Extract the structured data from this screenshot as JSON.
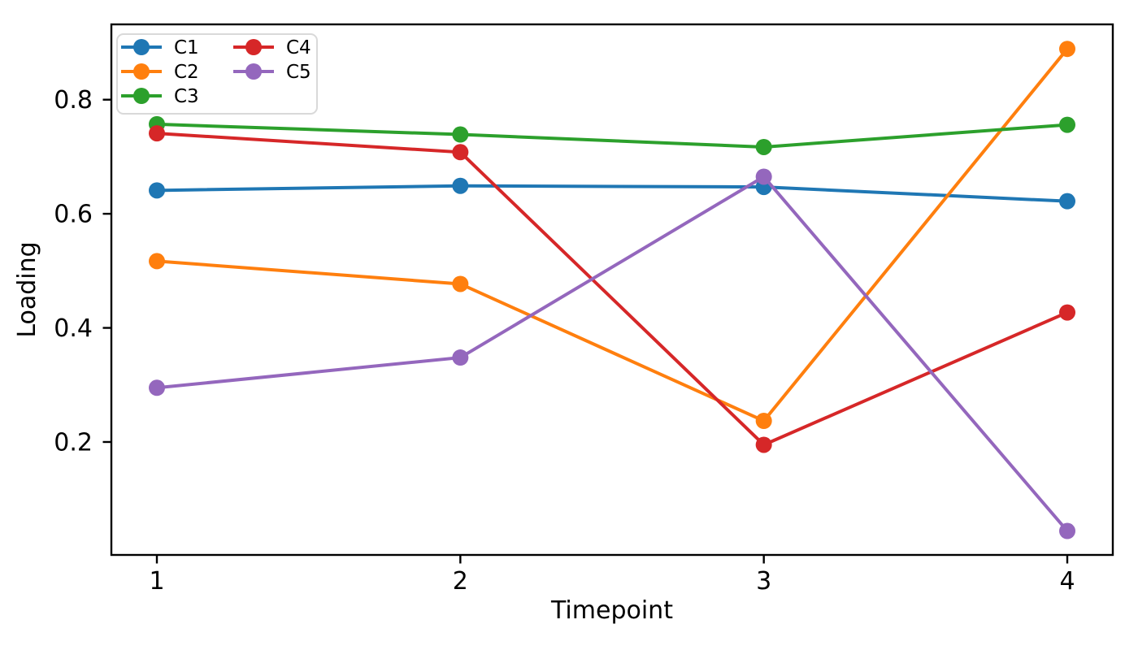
{
  "figure": {
    "background": "#ffffff",
    "text_color": "#000000",
    "axis_color": "#000000",
    "legend_border_color": "#d9d9d9",
    "legend_background": "#ffffff"
  },
  "chart_data": {
    "type": "line",
    "title": "",
    "xlabel": "Timepoint",
    "ylabel": "Loading",
    "x": [
      1,
      2,
      3,
      4
    ],
    "series": [
      {
        "name": "C1",
        "color": "#1f77b4",
        "values": [
          0.641,
          0.649,
          0.647,
          0.622
        ]
      },
      {
        "name": "C2",
        "color": "#ff7f0e",
        "values": [
          0.517,
          0.477,
          0.237,
          0.889
        ]
      },
      {
        "name": "C3",
        "color": "#2ca02c",
        "values": [
          0.757,
          0.739,
          0.717,
          0.756
        ]
      },
      {
        "name": "C4",
        "color": "#d62728",
        "values": [
          0.741,
          0.708,
          0.195,
          0.427
        ]
      },
      {
        "name": "C5",
        "color": "#9467bd",
        "values": [
          0.295,
          0.348,
          0.665,
          0.044
        ]
      }
    ],
    "xlim": [
      0.85,
      4.15
    ],
    "ylim": [
      0.002,
      0.932
    ],
    "xticks": {
      "values": [
        1,
        2,
        3,
        4
      ],
      "labels": [
        "1",
        "2",
        "3",
        "4"
      ]
    },
    "yticks": {
      "values": [
        0.2,
        0.4,
        0.6,
        0.8
      ],
      "labels": [
        "0.2",
        "0.4",
        "0.6",
        "0.8"
      ]
    },
    "grid": false,
    "marker": "circle",
    "line_style": "solid",
    "legend": {
      "position": "upper-left",
      "ncol": 2,
      "entries": [
        "C1",
        "C2",
        "C3",
        "C4",
        "C5"
      ]
    }
  }
}
